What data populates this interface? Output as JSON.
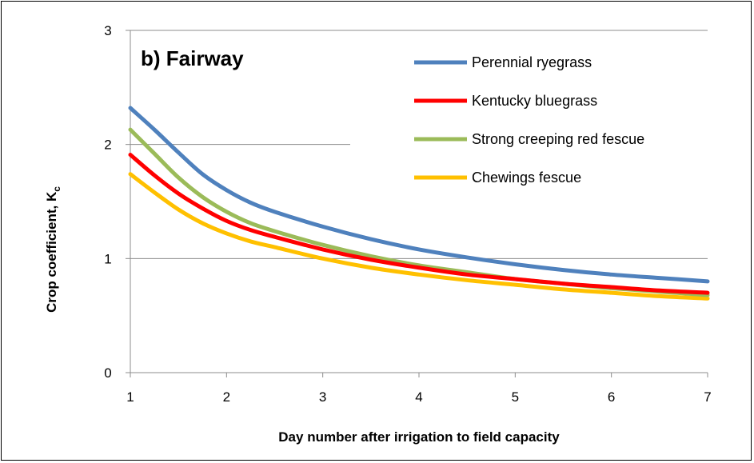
{
  "chart_data": {
    "type": "line",
    "title": "b) Fairway",
    "xlabel": "Day number after irrigation to field capacity",
    "ylabel": "Crop coefficient, K",
    "ylabel_subscript": "c",
    "xlim": [
      1,
      7
    ],
    "ylim": [
      0,
      3
    ],
    "x_ticks": [
      "1",
      "2",
      "3",
      "4",
      "5",
      "6",
      "7"
    ],
    "y_ticks": [
      "0",
      "1",
      "2",
      "3"
    ],
    "grid": "horizontal",
    "legend_position": "top-right",
    "series": [
      {
        "name": "Perennial ryegrass",
        "color": "#4f81bd",
        "x": [
          1,
          1.25,
          1.5,
          1.75,
          2,
          2.25,
          2.5,
          3,
          3.5,
          4,
          4.5,
          5,
          5.5,
          6,
          6.5,
          7
        ],
        "y": [
          2.32,
          2.13,
          1.93,
          1.74,
          1.6,
          1.49,
          1.41,
          1.28,
          1.17,
          1.08,
          1.01,
          0.95,
          0.9,
          0.86,
          0.83,
          0.8
        ]
      },
      {
        "name": "Kentucky bluegrass",
        "color": "#ff0000",
        "x": [
          1,
          1.25,
          1.5,
          1.75,
          2,
          2.25,
          2.5,
          3,
          3.5,
          4,
          4.5,
          5,
          5.5,
          6,
          6.5,
          7
        ],
        "y": [
          1.91,
          1.73,
          1.57,
          1.44,
          1.33,
          1.25,
          1.19,
          1.08,
          0.99,
          0.92,
          0.86,
          0.82,
          0.78,
          0.75,
          0.72,
          0.7
        ]
      },
      {
        "name": "Strong creeping red fescue",
        "color": "#9bbb59",
        "x": [
          1,
          1.25,
          1.5,
          1.75,
          2,
          2.25,
          2.5,
          3,
          3.5,
          4,
          4.5,
          5,
          5.5,
          6,
          6.5,
          7
        ],
        "y": [
          2.13,
          1.92,
          1.71,
          1.54,
          1.41,
          1.31,
          1.24,
          1.12,
          1.02,
          0.94,
          0.88,
          0.82,
          0.78,
          0.74,
          0.71,
          0.68
        ]
      },
      {
        "name": "Chewings fescue",
        "color": "#ffc000",
        "x": [
          1,
          1.25,
          1.5,
          1.75,
          2,
          2.25,
          2.5,
          3,
          3.5,
          4,
          4.5,
          5,
          5.5,
          6,
          6.5,
          7
        ],
        "y": [
          1.74,
          1.58,
          1.43,
          1.31,
          1.22,
          1.15,
          1.1,
          1.0,
          0.92,
          0.86,
          0.81,
          0.77,
          0.73,
          0.7,
          0.67,
          0.65
        ]
      }
    ]
  }
}
